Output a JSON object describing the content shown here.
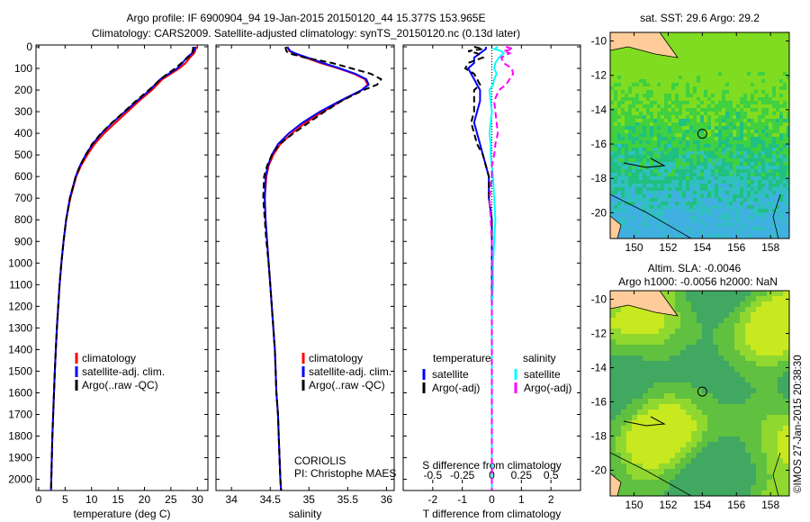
{
  "title": {
    "line1": "Argo profile: IF 6900904_94 19-Jan-2015 20150120_44 15.377S 153.965E",
    "line2": "Climatology: CARS2009. Satellite-adjusted climatology: synTS_20150120.nc (0.13d later)"
  },
  "colors": {
    "climatology": "#ff0000",
    "satellite": "#0000ff",
    "argo": "#000000",
    "sal_satellite": "#00ffff",
    "sal_argo": "#ff00ff",
    "land": "#ffcc99"
  },
  "chart_data": [
    {
      "type": "line",
      "xlabel": "temperature (deg C)",
      "xlim": [
        -0.5,
        32
      ],
      "ylim": [
        0,
        2060
      ],
      "xticks": [
        0,
        5,
        10,
        15,
        20,
        25,
        30
      ],
      "yticks": [
        0,
        100,
        200,
        300,
        400,
        500,
        600,
        700,
        800,
        900,
        1000,
        1100,
        1200,
        1300,
        1400,
        1500,
        1600,
        1700,
        1800,
        1900,
        2000
      ],
      "depth": [
        0,
        10,
        20,
        30,
        50,
        75,
        100,
        125,
        150,
        175,
        200,
        250,
        300,
        350,
        400,
        450,
        500,
        550,
        600,
        700,
        800,
        900,
        1000,
        1100,
        1200,
        1300,
        1400,
        1500,
        1600,
        1700,
        1800,
        1900,
        2000,
        2050
      ],
      "series": [
        {
          "name": "climatology",
          "values": [
            29.8,
            29.7,
            29.6,
            29.4,
            28.6,
            27.8,
            26.6,
            25,
            23.4,
            22.4,
            21.4,
            19,
            16.8,
            14.6,
            12.4,
            10.6,
            9.2,
            8,
            7.1,
            6,
            5.2,
            4.7,
            4.3,
            3.95,
            3.7,
            3.45,
            3.25,
            3.05,
            2.9,
            2.75,
            2.6,
            2.5,
            2.4,
            2.35
          ]
        },
        {
          "name": "satellite-adj. clim.",
          "values": [
            29.6,
            29.5,
            29.3,
            29.0,
            28.0,
            27.2,
            26.2,
            24.6,
            23.0,
            22.0,
            21.0,
            18.6,
            16.3,
            14.0,
            11.9,
            10.2,
            8.9,
            7.8,
            7.0,
            5.9,
            5.2,
            4.7,
            4.3,
            3.95,
            3.7,
            3.45,
            3.25,
            3.05,
            2.9,
            2.75,
            2.6,
            2.5,
            2.4,
            2.35
          ]
        },
        {
          "name": "Argo(..raw -QC)",
          "values": [
            29.2,
            29.2,
            29.1,
            29.0,
            28.2,
            27.0,
            25.8,
            24.4,
            23.0,
            22.0,
            20.8,
            18.4,
            16.2,
            13.9,
            11.8,
            10.1,
            8.9,
            7.8,
            7.0,
            5.9,
            5.2,
            4.7,
            4.3,
            3.95,
            3.7,
            3.45,
            3.25,
            3.05,
            2.9,
            2.75,
            2.6,
            2.5,
            2.4,
            2.35
          ]
        }
      ],
      "legend": [
        "climatology",
        "satellite-adj. clim.",
        "Argo(..raw -QC)"
      ]
    },
    {
      "type": "line",
      "xlabel": "salinity",
      "xlim": [
        33.8,
        36.1
      ],
      "ylim": [
        0,
        2060
      ],
      "xticks": [
        34,
        34.5,
        35,
        35.5,
        36
      ],
      "depth": [
        0,
        10,
        20,
        30,
        50,
        75,
        100,
        125,
        150,
        175,
        200,
        250,
        300,
        350,
        400,
        450,
        500,
        550,
        600,
        700,
        800,
        900,
        1000,
        1100,
        1200,
        1300,
        1400,
        1500,
        1600,
        1700,
        1800,
        1900,
        2000,
        2050
      ],
      "series": [
        {
          "name": "climatology",
          "values": [
            34.72,
            34.73,
            34.75,
            34.8,
            34.95,
            35.15,
            35.38,
            35.58,
            35.72,
            35.76,
            35.68,
            35.42,
            35.18,
            34.96,
            34.78,
            34.63,
            34.54,
            34.48,
            34.45,
            34.43,
            34.44,
            34.46,
            34.48,
            34.5,
            34.52,
            34.54,
            34.56,
            34.57,
            34.58,
            34.6,
            34.61,
            34.62,
            34.63,
            34.64
          ]
        },
        {
          "name": "satellite-adj. clim.",
          "values": [
            34.72,
            34.74,
            34.76,
            34.82,
            34.98,
            35.18,
            35.4,
            35.6,
            35.74,
            35.77,
            35.68,
            35.4,
            35.14,
            34.92,
            34.74,
            34.6,
            34.52,
            34.47,
            34.44,
            34.43,
            34.44,
            34.46,
            34.48,
            34.5,
            34.52,
            34.54,
            34.56,
            34.57,
            34.58,
            34.6,
            34.61,
            34.62,
            34.63,
            34.64
          ]
        },
        {
          "name": "Argo(..raw -QC)",
          "values": [
            34.7,
            34.7,
            34.71,
            34.74,
            34.95,
            35.3,
            35.55,
            35.8,
            35.93,
            35.88,
            35.7,
            35.42,
            35.2,
            35.0,
            34.8,
            34.62,
            34.52,
            34.46,
            34.42,
            34.41,
            34.43,
            34.45,
            34.48,
            34.5,
            34.52,
            34.54,
            34.56,
            34.57,
            34.58,
            34.6,
            34.61,
            34.62,
            34.63,
            34.64
          ]
        }
      ],
      "legend": [
        "climatology",
        "satellite-adj. clim.",
        "Argo(..raw -QC)"
      ],
      "annotation": [
        "CORIOLIS",
        "PI: Christophe MAES"
      ]
    },
    {
      "type": "line",
      "xlabel": "T difference from climatology",
      "xlabel2": "S difference from climatology",
      "xlim": [
        -3,
        3
      ],
      "ylim": [
        0,
        2060
      ],
      "xticks": [
        -2,
        -1,
        0,
        1,
        2
      ],
      "xticks2": [
        -0.5,
        -0.25,
        0,
        0.25,
        0.5
      ],
      "xticks2_labels": [
        "-0.5",
        "-0.25",
        "0",
        "0.25",
        "0.5"
      ],
      "depth": [
        0,
        10,
        20,
        30,
        50,
        75,
        100,
        125,
        150,
        175,
        200,
        250,
        300,
        350,
        400,
        450,
        500,
        550,
        600,
        700,
        800,
        900,
        1000,
        1100,
        1200,
        1300,
        1400,
        1500,
        1600,
        1700,
        1800,
        1900,
        2000,
        2050
      ],
      "series": [
        {
          "name": "temperature satellite",
          "values": [
            -0.2,
            -0.2,
            -0.3,
            -0.4,
            -0.6,
            -0.6,
            -0.8,
            -0.7,
            -0.6,
            -0.5,
            -0.4,
            -0.4,
            -0.5,
            -0.6,
            -0.5,
            -0.4,
            -0.3,
            -0.2,
            -0.1,
            -0.1,
            0,
            0,
            0,
            0,
            0,
            0,
            0,
            0,
            0,
            0,
            0,
            0,
            0,
            0
          ]
        },
        {
          "name": "temperature Argo(-adj)",
          "values": [
            -0.6,
            -0.3,
            -0.8,
            -0.5,
            -0.3,
            -0.8,
            -0.9,
            -0.6,
            -0.5,
            -0.4,
            -0.6,
            -0.6,
            -0.6,
            -0.7,
            -0.6,
            -0.5,
            -0.3,
            -0.2,
            -0.1,
            -0.1,
            0,
            0,
            0,
            0,
            0,
            0,
            0,
            0,
            0,
            0,
            0,
            0,
            0,
            0
          ]
        },
        {
          "name": "salinity satellite",
          "values": [
            0.05,
            0.02,
            0.08,
            0.1,
            0.06,
            0.03,
            0.02,
            0.04,
            0.02,
            0.01,
            -0.02,
            -0.01,
            0,
            -0.01,
            -0.02,
            -0.01,
            -0.01,
            0,
            0.01,
            0.02,
            0.03,
            0.02,
            0.01,
            0.01,
            0,
            0,
            0,
            0,
            0,
            0,
            0,
            0,
            0,
            0
          ]
        },
        {
          "name": "salinity Argo(-adj)",
          "values": [
            0.12,
            0.18,
            0.1,
            0.15,
            0.08,
            0.1,
            0.17,
            0.18,
            0.15,
            0.12,
            0.06,
            0.02,
            0.03,
            0.04,
            0.05,
            0.03,
            0.02,
            0,
            0,
            -0.02,
            -0.01,
            0,
            0,
            0,
            0,
            0,
            0,
            0,
            0,
            0,
            0,
            0,
            0,
            0
          ]
        }
      ],
      "legend_headers": [
        "temperature",
        "salinity"
      ],
      "legend": [
        "satellite",
        "Argo(-adj)",
        "satellite",
        "Argo(-adj)"
      ]
    }
  ],
  "maps": [
    {
      "title": "sat. SST: 29.6 Argo: 29.2",
      "lon_ticks": [
        150,
        152,
        154,
        156,
        158
      ],
      "lat_ticks": [
        -10,
        -12,
        -14,
        -16,
        -18,
        -20
      ],
      "marker": [
        154,
        -15.4
      ]
    },
    {
      "title1": "Altim. SLA: -0.0046",
      "title2": "Argo h1000: -0.0056 h2000: NaN",
      "lon_ticks": [
        150,
        152,
        154,
        156,
        158
      ],
      "lat_ticks": [
        -10,
        -12,
        -14,
        -16,
        -18,
        -20
      ],
      "marker": [
        154,
        -15.4
      ]
    }
  ],
  "credit": "©IMOS 27-Jan-2015 20:38:30"
}
